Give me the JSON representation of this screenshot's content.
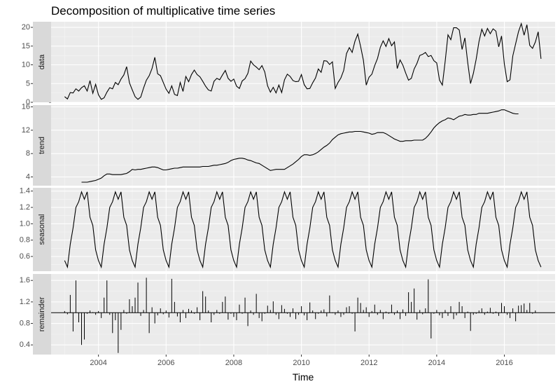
{
  "chart_data": {
    "type": "line",
    "title": "Decomposition of multiplicative time series",
    "xlabel": "Time",
    "xlim": [
      2002.6,
      2017.5
    ],
    "x_ticks": [
      2004,
      2006,
      2008,
      2010,
      2012,
      2014,
      2016
    ],
    "x_tick_labels": [
      "2004",
      "2006",
      "2008",
      "2010",
      "2012",
      "2014",
      "2016"
    ],
    "grid": true,
    "start": 2003.0,
    "frequency": 12,
    "panels": [
      {
        "name": "data",
        "strip_label": "data",
        "ylim": [
          0,
          21.5
        ],
        "y_ticks": [
          0,
          5,
          10,
          15,
          20
        ],
        "y_tick_labels": [
          "0",
          "5",
          "10",
          "15",
          "20"
        ],
        "values": [
          1.5,
          0.9,
          2.6,
          2.5,
          3.6,
          3.0,
          3.9,
          4.4,
          3.0,
          5.8,
          2.4,
          4.8,
          2.0,
          0.8,
          1.2,
          2.7,
          3.9,
          3.6,
          5.3,
          4.7,
          6.2,
          7.3,
          9.5,
          5.2,
          3.3,
          1.5,
          0.8,
          1.4,
          3.8,
          5.9,
          7.1,
          9.0,
          12.0,
          7.6,
          7.1,
          5.3,
          3.5,
          2.4,
          4.4,
          2.1,
          1.8,
          5.3,
          2.9,
          6.9,
          5.5,
          7.4,
          8.6,
          7.4,
          6.8,
          5.6,
          4.3,
          3.3,
          3.0,
          5.6,
          6.4,
          6.0,
          7.3,
          8.5,
          6.4,
          5.6,
          6.2,
          4.3,
          3.7,
          5.7,
          6.3,
          7.7,
          11.0,
          10.0,
          9.4,
          8.7,
          9.8,
          8.1,
          4.4,
          2.7,
          4.0,
          2.5,
          4.6,
          2.6,
          6.0,
          7.5,
          6.9,
          5.8,
          5.5,
          5.6,
          7.4,
          4.7,
          3.6,
          3.7,
          5.2,
          6.5,
          8.9,
          8.0,
          11.1,
          11.0,
          10.1,
          10.8,
          3.7,
          5.3,
          6.5,
          8.5,
          13.0,
          14.6,
          13.3,
          16.3,
          18.2,
          14.9,
          11.2,
          4.6,
          6.7,
          7.5,
          9.8,
          11.7,
          14.7,
          16.4,
          14.9,
          17.0,
          15.1,
          16.1,
          9.0,
          11.3,
          9.9,
          7.8,
          5.9,
          6.4,
          8.9,
          10.4,
          12.5,
          12.8,
          13.3,
          12.2,
          12.5,
          11.1,
          10.5,
          5.9,
          4.6,
          10.9,
          18.0,
          16.7,
          19.9,
          19.9,
          19.3,
          14.1,
          17.2,
          10.6,
          5.0,
          7.7,
          11.5,
          16.2,
          19.5,
          17.7,
          19.7,
          18.3,
          19.6,
          19.0,
          14.8,
          17.7,
          10.2,
          5.5,
          6.0,
          12.4,
          15.6,
          18.8,
          21.0,
          17.9,
          20.7,
          15.2,
          14.4,
          16.1,
          18.8,
          11.6
        ]
      },
      {
        "name": "trend",
        "strip_label": "trend",
        "ylim": [
          2.5,
          16.3
        ],
        "y_ticks": [
          4,
          8,
          12,
          16
        ],
        "y_tick_labels": [
          "4",
          "8",
          "12",
          "16"
        ],
        "values": [
          3.1,
          3.1,
          3.1,
          3.2,
          3.3,
          3.4,
          3.6,
          3.8,
          4.2,
          4.5,
          4.5,
          4.4,
          4.4,
          4.4,
          4.4,
          4.5,
          4.6,
          4.9,
          5.3,
          5.2,
          5.3,
          5.3,
          5.4,
          5.5,
          5.6,
          5.7,
          5.7,
          5.6,
          5.4,
          5.2,
          5.2,
          5.3,
          5.4,
          5.5,
          5.5,
          5.6,
          5.7,
          5.7,
          5.7,
          5.7,
          5.7,
          5.7,
          5.7,
          5.8,
          5.8,
          5.8,
          5.9,
          6.0,
          6.0,
          6.1,
          6.2,
          6.3,
          6.5,
          6.8,
          7.0,
          7.1,
          7.2,
          7.2,
          7.1,
          6.9,
          6.8,
          6.6,
          6.4,
          6.3,
          6.0,
          5.7,
          5.4,
          5.1,
          5.2,
          5.3,
          5.3,
          5.3,
          5.3,
          5.6,
          5.9,
          6.2,
          6.6,
          7.0,
          7.5,
          7.8,
          7.8,
          7.7,
          7.8,
          8.0,
          8.3,
          8.7,
          9.1,
          9.4,
          9.8,
          10.4,
          10.8,
          11.2,
          11.4,
          11.5,
          11.6,
          11.7,
          11.7,
          11.8,
          11.8,
          11.8,
          11.7,
          11.6,
          11.5,
          11.3,
          11.4,
          11.6,
          11.6,
          11.6,
          11.4,
          11.1,
          10.8,
          10.5,
          10.3,
          10.1,
          10.1,
          10.2,
          10.2,
          10.2,
          10.3,
          10.3,
          10.3,
          10.3,
          10.6,
          11.1,
          11.7,
          12.4,
          12.9,
          13.3,
          13.6,
          13.8,
          14.1,
          14.0,
          13.8,
          14.1,
          14.4,
          14.5,
          14.7,
          14.6,
          14.6,
          14.7,
          14.7,
          14.9,
          14.9,
          14.9,
          14.9,
          15.0,
          15.1,
          15.2,
          15.3,
          15.5,
          15.5,
          15.3,
          15.1,
          14.9,
          14.8,
          14.8
        ]
      },
      {
        "name": "seasonal",
        "strip_label": "seasonal",
        "ylim": [
          0.42,
          1.44
        ],
        "y_ticks": [
          0.6,
          0.8,
          1.0,
          1.2,
          1.4
        ],
        "y_tick_labels": [
          "0.6",
          "0.8",
          "1.0",
          "1.2",
          "1.4"
        ],
        "pattern_one_year": [
          0.55,
          0.47,
          0.75,
          0.95,
          1.2,
          1.27,
          1.39,
          1.3,
          1.39,
          1.08,
          0.98,
          0.68
        ]
      },
      {
        "name": "remainder",
        "strip_label": "remainder",
        "ylim": [
          0.22,
          1.72
        ],
        "baseline": 1.0,
        "y_ticks": [
          0.4,
          0.8,
          1.2,
          1.6
        ],
        "y_tick_labels": [
          "0.4",
          "0.8",
          "1.2",
          "1.6"
        ],
        "values": [
          1.03,
          0.97,
          1.33,
          0.65,
          1.6,
          0.82,
          0.4,
          0.5,
          0.98,
          1.04,
          1.01,
          0.96,
          1.03,
          0.9,
          1.28,
          1.6,
          0.96,
          0.62,
          0.86,
          0.25,
          0.68,
          1.05,
          0.98,
          1.25,
          1.12,
          1.28,
          1.56,
          0.94,
          1.05,
          1.65,
          0.62,
          1.1,
          0.8,
          0.95,
          1.08,
          0.97,
          1.04,
          0.91,
          1.63,
          1.2,
          0.93,
          0.82,
          1.05,
          0.9,
          1.07,
          1.04,
          0.98,
          1.1,
          0.86,
          1.4,
          1.3,
          1.04,
          0.82,
          0.96,
          1.05,
          0.98,
          1.2,
          1.3,
          0.87,
          0.98,
          0.92,
          0.86,
          1.15,
          0.98,
          1.28,
          0.75,
          1.04,
          0.96,
          1.35,
          0.9,
          0.84,
          0.98,
          1.13,
          1.05,
          1.21,
          0.96,
          0.88,
          1.14,
          1.07,
          0.98,
          0.92,
          1.08,
          0.88,
          0.96,
          1.12,
          0.95,
          0.86,
          1.19,
          1.04,
          0.88,
          0.98,
          1.04,
          1.06,
          0.93,
          1.32,
          0.99,
          0.96,
          1.04,
          0.92,
          0.96,
          1.1,
          1.12,
          0.98,
          0.65,
          1.28,
          1.18,
          1.05,
          1.1,
          0.92,
          1.03,
          1.15,
          0.96,
          1.05,
          0.88,
          1.02,
          0.98,
          1.15,
          0.96,
          1.04,
          0.88,
          1.06,
          0.94,
          1.38,
          1.2,
          1.45,
          0.87,
          1.05,
          0.97,
          1.08,
          1.62,
          0.52,
          0.98,
          1.05,
          0.95,
          0.9,
          1.05,
          0.94,
          1.12,
          0.88,
          0.95,
          1.2,
          1.12,
          0.9,
          1.02,
          0.66,
          0.96,
          0.98,
          1.04,
          1.08,
          0.96,
          1.02,
          1.09,
          0.98,
          1.02,
          0.94,
          1.18,
          1.12,
          0.96,
          0.9,
          1.08,
          0.84,
          1.13,
          1.14,
          1.17,
          1.05,
          1.18,
          0.98,
          1.04
        ]
      }
    ]
  }
}
